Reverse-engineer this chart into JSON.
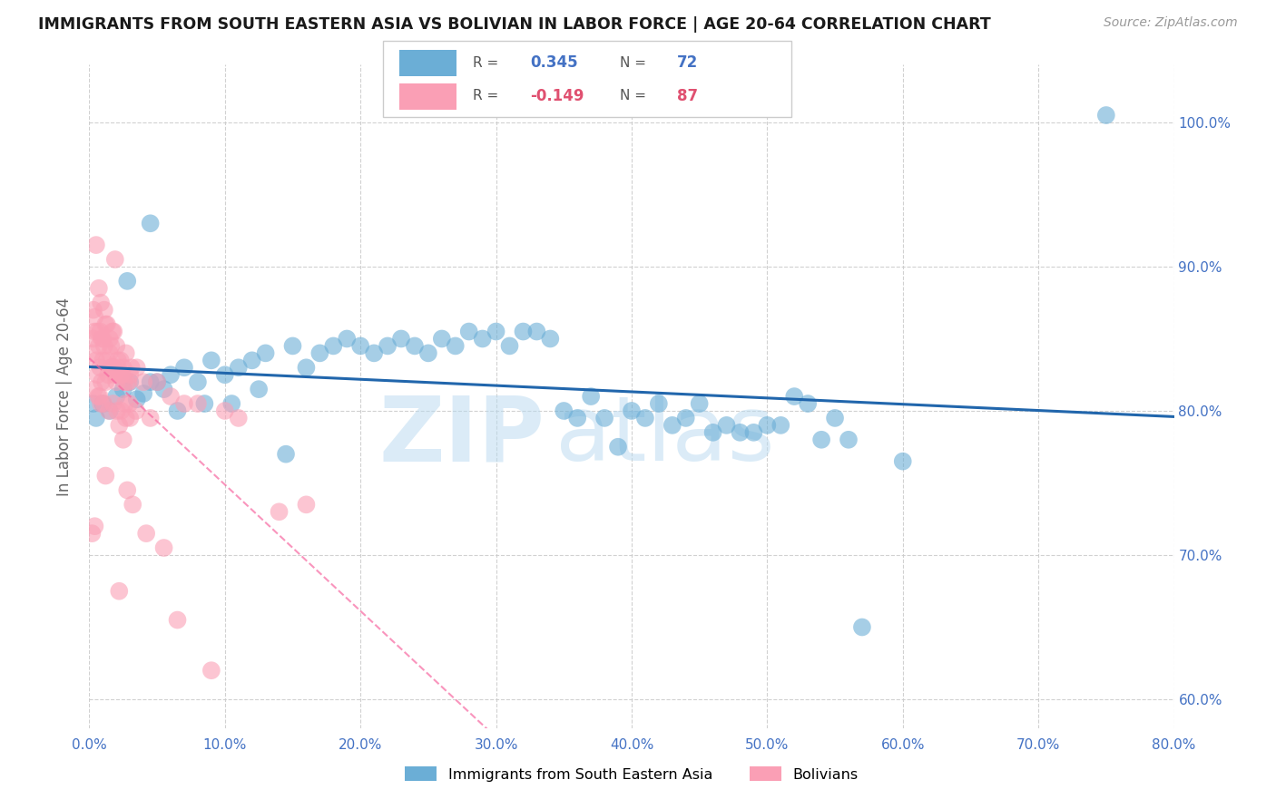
{
  "title": "IMMIGRANTS FROM SOUTH EASTERN ASIA VS BOLIVIAN IN LABOR FORCE | AGE 20-64 CORRELATION CHART",
  "source": "Source: ZipAtlas.com",
  "xlabel_vals": [
    0.0,
    10.0,
    20.0,
    30.0,
    40.0,
    50.0,
    60.0,
    70.0,
    80.0
  ],
  "ylabel_vals": [
    60.0,
    70.0,
    80.0,
    90.0,
    100.0
  ],
  "ylabel_label": "In Labor Force | Age 20-64",
  "xlim": [
    0.0,
    80.0
  ],
  "ylim": [
    58.0,
    104.0
  ],
  "blue_R": 0.345,
  "blue_N": 72,
  "pink_R": -0.149,
  "pink_N": 87,
  "blue_color": "#6baed6",
  "pink_color": "#fa9fb5",
  "blue_line_color": "#2166ac",
  "pink_line_color": "#f768a1",
  "legend_label_blue": "Immigrants from South Eastern Asia",
  "legend_label_pink": "Bolivians",
  "watermark_zip": "ZIP",
  "watermark_atlas": "atlas",
  "blue_scatter_x": [
    0.3,
    0.5,
    1.0,
    1.5,
    2.0,
    2.5,
    3.0,
    3.5,
    4.0,
    4.5,
    5.0,
    5.5,
    6.0,
    6.5,
    7.0,
    8.0,
    8.5,
    9.0,
    10.0,
    10.5,
    11.0,
    12.0,
    12.5,
    13.0,
    14.5,
    15.0,
    16.0,
    17.0,
    18.0,
    19.0,
    20.0,
    21.0,
    22.0,
    23.0,
    24.0,
    25.0,
    26.0,
    27.0,
    28.0,
    29.0,
    30.0,
    31.0,
    32.0,
    33.0,
    34.0,
    35.0,
    36.0,
    37.0,
    38.0,
    39.0,
    40.0,
    41.0,
    42.0,
    43.0,
    44.0,
    45.0,
    46.0,
    47.0,
    48.0,
    49.0,
    50.0,
    51.0,
    52.0,
    53.0,
    54.0,
    55.0,
    56.0,
    57.0,
    60.0,
    75.0,
    2.8,
    4.5
  ],
  "blue_scatter_y": [
    80.5,
    79.5,
    80.5,
    80.0,
    81.0,
    81.5,
    82.0,
    80.8,
    81.2,
    82.0,
    82.0,
    81.5,
    82.5,
    80.0,
    83.0,
    82.0,
    80.5,
    83.5,
    82.5,
    80.5,
    83.0,
    83.5,
    81.5,
    84.0,
    77.0,
    84.5,
    83.0,
    84.0,
    84.5,
    85.0,
    84.5,
    84.0,
    84.5,
    85.0,
    84.5,
    84.0,
    85.0,
    84.5,
    85.5,
    85.0,
    85.5,
    84.5,
    85.5,
    85.5,
    85.0,
    80.0,
    79.5,
    81.0,
    79.5,
    77.5,
    80.0,
    79.5,
    80.5,
    79.0,
    79.5,
    80.5,
    78.5,
    79.0,
    78.5,
    78.5,
    79.0,
    79.0,
    81.0,
    80.5,
    78.0,
    79.5,
    78.0,
    65.0,
    76.5,
    100.5,
    89.0,
    93.0
  ],
  "pink_scatter_x": [
    0.2,
    0.3,
    0.3,
    0.35,
    0.4,
    0.4,
    0.5,
    0.5,
    0.6,
    0.6,
    0.65,
    0.7,
    0.7,
    0.75,
    0.8,
    0.8,
    0.85,
    0.85,
    0.9,
    0.9,
    1.0,
    1.0,
    1.05,
    1.1,
    1.1,
    1.2,
    1.2,
    1.3,
    1.3,
    1.4,
    1.45,
    1.5,
    1.5,
    1.6,
    1.6,
    1.7,
    1.7,
    1.75,
    1.8,
    1.8,
    1.9,
    1.9,
    2.0,
    2.0,
    2.05,
    2.1,
    2.1,
    2.2,
    2.2,
    2.3,
    2.3,
    2.35,
    2.4,
    2.5,
    2.5,
    2.6,
    2.65,
    2.7,
    2.7,
    2.8,
    2.8,
    2.9,
    2.95,
    3.0,
    3.0,
    3.1,
    3.2,
    3.45,
    3.5,
    4.0,
    4.2,
    4.5,
    5.0,
    5.5,
    6.0,
    6.5,
    7.0,
    8.0,
    9.0,
    10.0,
    11.0,
    14.0,
    16.0,
    0.2,
    0.4,
    1.2,
    2.2
  ],
  "pink_scatter_y": [
    84.0,
    85.0,
    87.0,
    81.5,
    85.5,
    86.5,
    83.5,
    91.5,
    82.5,
    85.5,
    81.0,
    84.5,
    88.5,
    81.0,
    83.0,
    85.5,
    80.5,
    87.5,
    82.0,
    85.0,
    83.5,
    85.0,
    80.5,
    84.5,
    87.0,
    82.0,
    86.0,
    83.5,
    86.0,
    82.5,
    80.0,
    84.0,
    85.0,
    83.0,
    84.5,
    83.0,
    85.5,
    80.5,
    83.0,
    85.5,
    82.5,
    90.5,
    82.0,
    84.5,
    80.0,
    83.5,
    83.0,
    82.5,
    79.0,
    83.5,
    82.5,
    80.0,
    82.5,
    83.0,
    78.0,
    82.0,
    80.5,
    84.0,
    79.5,
    82.0,
    74.5,
    82.0,
    80.5,
    82.5,
    79.5,
    83.0,
    73.5,
    80.0,
    83.0,
    82.0,
    71.5,
    79.5,
    82.0,
    70.5,
    81.0,
    65.5,
    80.5,
    80.5,
    62.0,
    80.0,
    79.5,
    73.0,
    73.5,
    71.5,
    72.0,
    75.5,
    67.5
  ]
}
